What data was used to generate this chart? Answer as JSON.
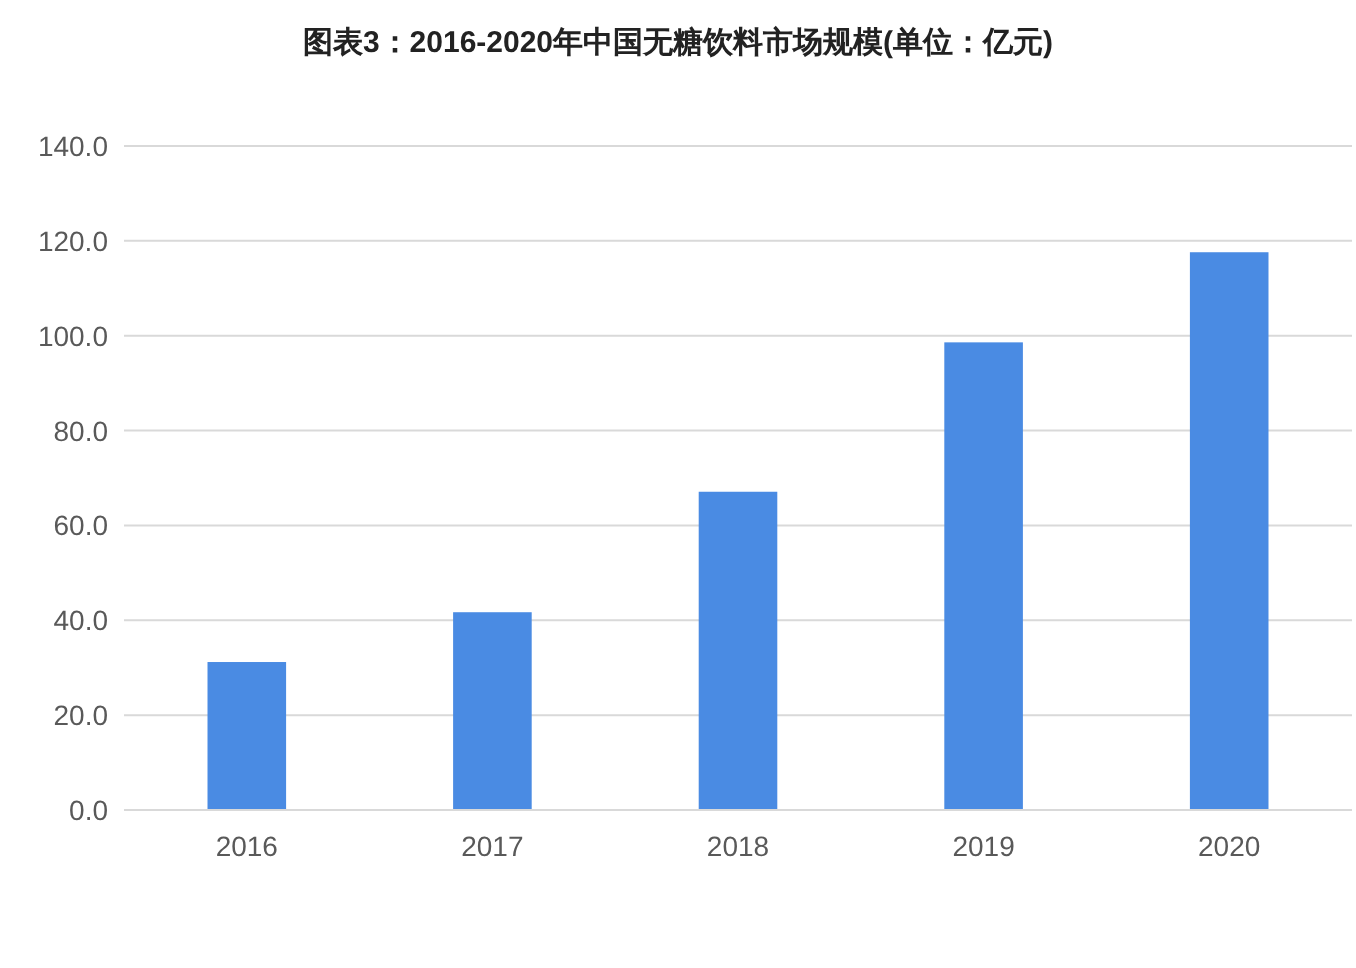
{
  "chart_data": {
    "type": "bar",
    "title": "图表3：2016-2020年中国无糖饮料市场规模(单位：亿元)",
    "categories": [
      "2016",
      "2017",
      "2018",
      "2019",
      "2020"
    ],
    "values": [
      31.2,
      41.7,
      67.1,
      98.6,
      117.6
    ],
    "color": "#4a8be3",
    "ylim": [
      0,
      140
    ],
    "yticks": [
      {
        "value": 0,
        "label": "0.0"
      },
      {
        "value": 20,
        "label": "20.0"
      },
      {
        "value": 40,
        "label": "40.0"
      },
      {
        "value": 60,
        "label": "60.0"
      },
      {
        "value": 80,
        "label": "80.0"
      },
      {
        "value": 100,
        "label": "100.0"
      },
      {
        "value": 120,
        "label": "120.0"
      },
      {
        "value": 140,
        "label": "140.0"
      }
    ],
    "grid": "y"
  }
}
